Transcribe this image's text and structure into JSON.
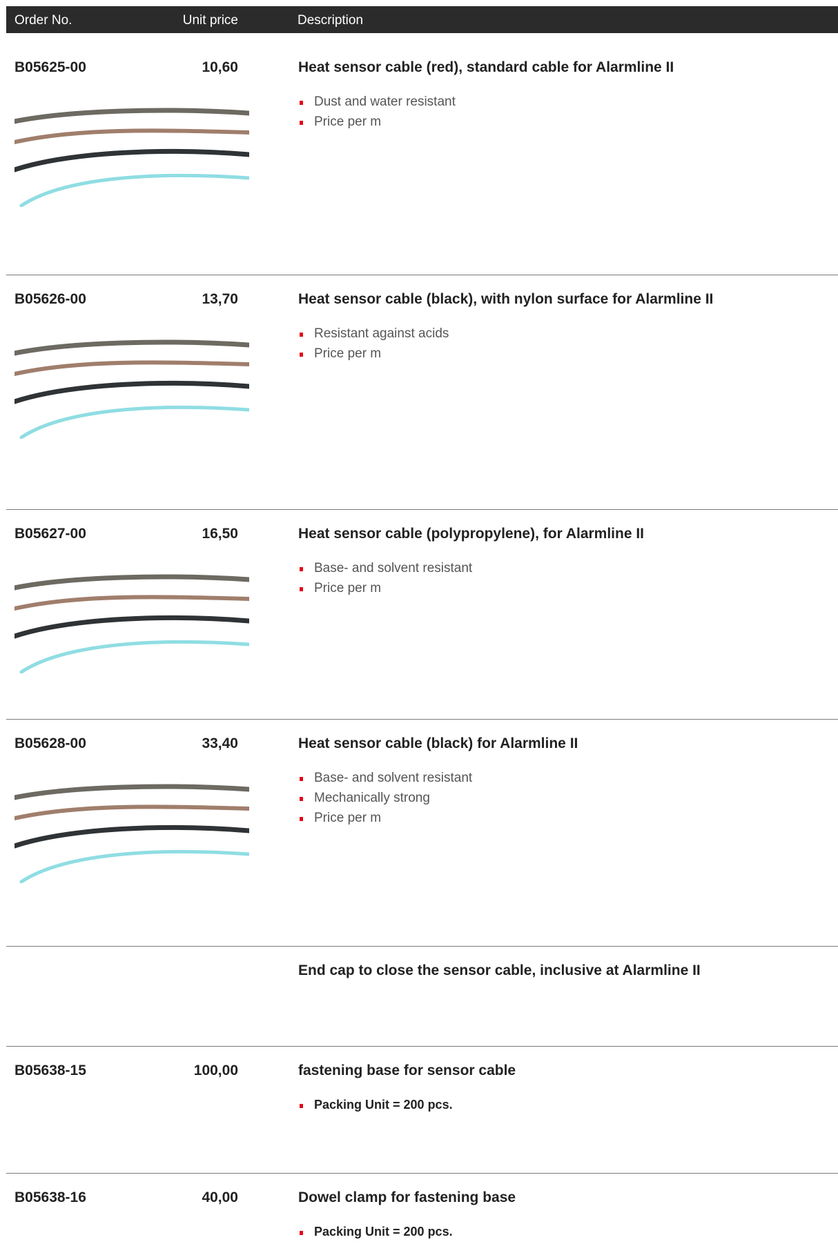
{
  "header": {
    "columns": [
      "Order No.",
      "Unit price",
      "Description"
    ]
  },
  "rows": [
    {
      "order_no": "B05625-00",
      "unit_price": "10,60",
      "description": "Heat sensor cable (red), standard cable for Alarmline II",
      "bullets": [
        "Dust and water resistant",
        "Price per m"
      ]
    },
    {
      "order_no": "B05626-00",
      "unit_price": "13,70",
      "description": "Heat sensor cable (black), with nylon surface for Alarmline II",
      "bullets": [
        "Resistant against acids",
        "Price per m"
      ]
    },
    {
      "order_no": "B05627-00",
      "unit_price": "16,50",
      "description": "Heat sensor cable (polypropylene), for Alarmline II",
      "bullets": [
        "Base- and solvent resistant",
        "Price per m"
      ]
    },
    {
      "order_no": "B05628-00",
      "unit_price": "33,40",
      "description": "Heat sensor cable (black) for Alarmline II",
      "bullets": [
        "Base- and solvent resistant",
        "Mechanically strong",
        "Price per m"
      ]
    },
    {
      "description": "End cap to close the sensor cable, inclusive at Alarmline II"
    },
    {
      "order_no": "B05638-15",
      "unit_price": "100,00",
      "description": "fastening base for sensor cable",
      "bullets": [
        "Packing Unit = 200 pcs."
      ]
    },
    {
      "order_no": "B05638-16",
      "unit_price": "40,00",
      "description": "Dowel clamp for fastening base",
      "bullets": [
        "Packing Unit = 200 pcs."
      ]
    }
  ]
}
